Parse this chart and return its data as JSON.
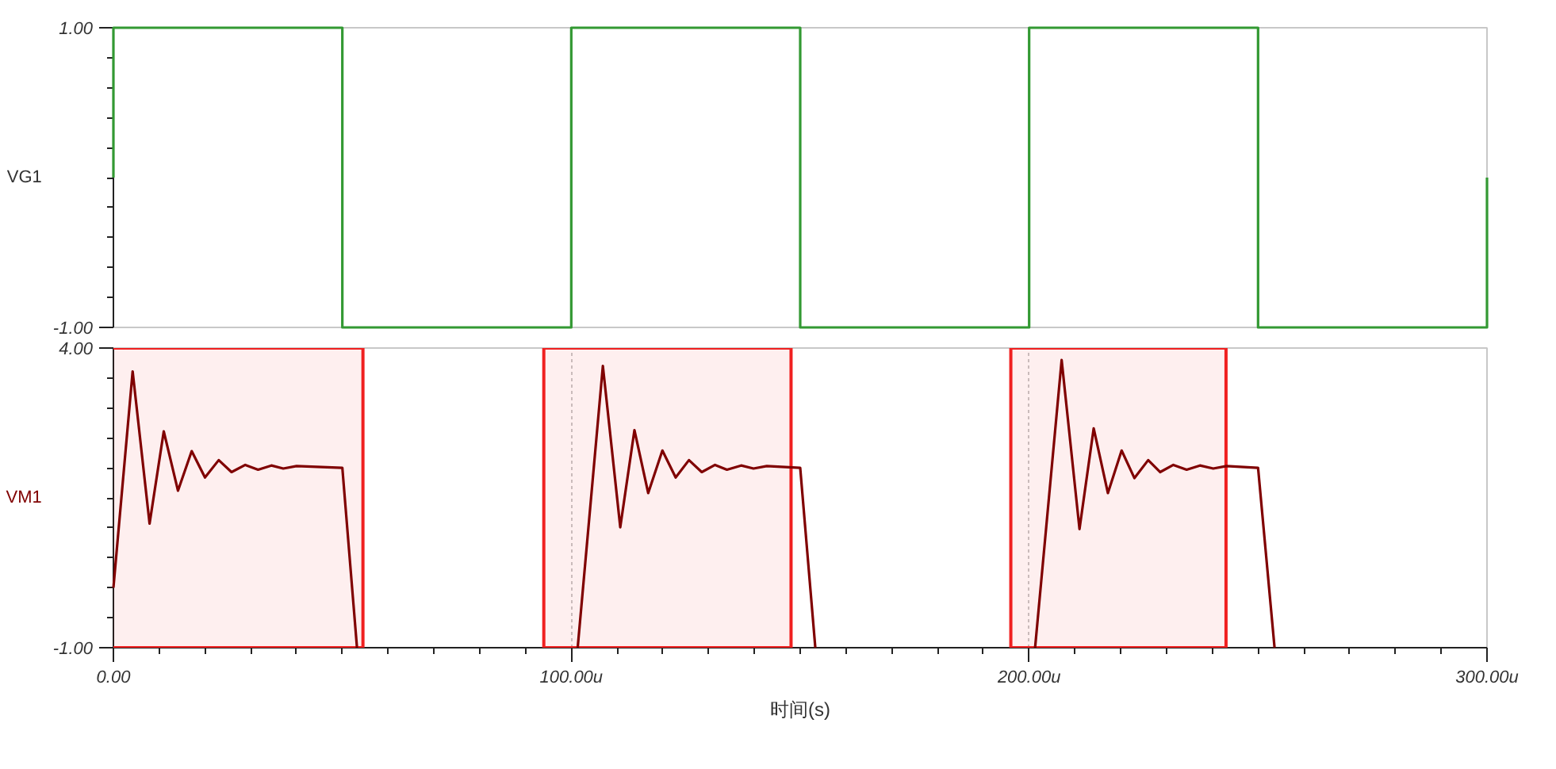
{
  "chart_data": [
    {
      "type": "line",
      "ylabel": "VG1",
      "x": [
        0,
        0,
        50,
        50,
        100,
        100,
        150,
        150,
        200,
        200,
        250,
        250,
        300,
        300
      ],
      "series": [
        {
          "color": "#339933",
          "values": [
            0,
            1,
            1,
            -1,
            -1,
            1,
            1,
            -1,
            -1,
            1,
            1,
            -1,
            -1,
            0
          ]
        }
      ],
      "xlim": [
        0,
        300
      ],
      "ylim": [
        -1,
        1
      ],
      "yticks": [
        {
          "value": 1,
          "label": "1.00"
        },
        {
          "value": -1,
          "label": "-1.00"
        }
      ],
      "tick_labels": "y"
    },
    {
      "type": "line",
      "xlabel": "时间(s)",
      "x": [
        0,
        4.2,
        7.9,
        11.0,
        14.1,
        17.1,
        20.0,
        23.0,
        25.8,
        28.8,
        31.6,
        34.5,
        37.1,
        40.0,
        50.0,
        53.2,
        80.0,
        101.4,
        106.9,
        110.7,
        113.8,
        116.8,
        119.9,
        122.8,
        125.7,
        128.5,
        131.4,
        134.0,
        137.1,
        139.8,
        142.7,
        150.0,
        153.3,
        180.0,
        201.3,
        207.1,
        211.0,
        214.1,
        217.2,
        220.2,
        223.0,
        226.0,
        228.6,
        231.5,
        234.4,
        237.3,
        240.2,
        243.1,
        250.0,
        253.6
      ],
      "series": [
        {
          "name": "VM1",
          "color": "#800000",
          "values": [
            0,
            3.61,
            1.07,
            2.61,
            1.62,
            2.28,
            1.84,
            2.13,
            1.93,
            2.05,
            1.97,
            2.04,
            1.99,
            2.03,
            2.0,
            -1,
            null,
            -1,
            3.7,
            1.01,
            2.63,
            1.58,
            2.29,
            1.84,
            2.13,
            1.93,
            2.05,
            1.97,
            2.04,
            1.99,
            2.03,
            2.0,
            -1,
            null,
            -1,
            3.8,
            0.98,
            2.66,
            1.58,
            2.29,
            1.83,
            2.13,
            1.93,
            2.05,
            1.97,
            2.04,
            1.99,
            2.03,
            2.0,
            -1
          ]
        }
      ],
      "xlim": [
        0,
        300
      ],
      "ylim": [
        -1,
        4
      ],
      "xticks": [
        {
          "value": 0,
          "label": "0.00"
        },
        {
          "value": 100,
          "label": "100.00u"
        },
        {
          "value": 200,
          "label": "200.00u"
        },
        {
          "value": 300,
          "label": "300.00u"
        }
      ],
      "yticks": [
        {
          "value": 4,
          "label": "4.00"
        },
        {
          "value": -1,
          "label": "-1.00"
        }
      ],
      "grid": "x",
      "bands": [
        {
          "axis": "x",
          "from": -5,
          "to": 54.5,
          "color": "#f02020"
        },
        {
          "axis": "x",
          "from": 94,
          "to": 148,
          "color": "#f02020"
        },
        {
          "axis": "x",
          "from": 196,
          "to": 243,
          "color": "#f02020"
        }
      ]
    }
  ]
}
